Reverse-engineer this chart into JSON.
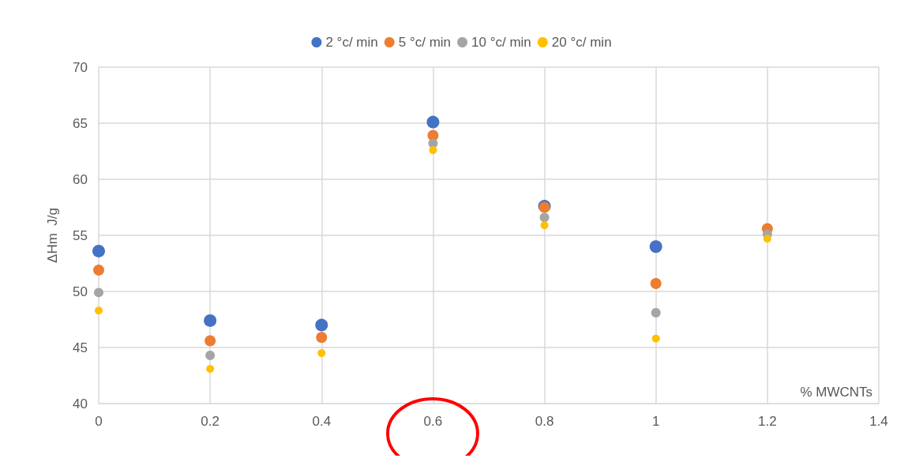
{
  "chart_data": {
    "type": "scatter",
    "ylabel": "ΔHm  J/g",
    "xlabel": "% MWCNTs",
    "x": [
      0,
      0.2,
      0.4,
      0.6,
      0.8,
      1,
      1.2
    ],
    "series": [
      {
        "name": "2 °c/ min",
        "color": "#4472c4",
        "values": [
          53.6,
          47.4,
          47.0,
          65.1,
          57.6,
          54.0,
          null
        ]
      },
      {
        "name": "5 °c/ min",
        "color": "#ed7d31",
        "values": [
          51.9,
          45.6,
          45.9,
          63.9,
          57.5,
          50.7,
          55.6
        ]
      },
      {
        "name": "10 °c/ min",
        "color": "#a5a5a5",
        "values": [
          49.9,
          44.3,
          null,
          63.2,
          56.6,
          48.1,
          55.1
        ]
      },
      {
        "name": "20 °c/ min",
        "color": "#ffc000",
        "values": [
          48.3,
          43.1,
          44.5,
          62.6,
          55.9,
          45.8,
          54.7
        ]
      }
    ],
    "xlim": [
      0,
      1.4
    ],
    "xticks": [
      0,
      0.2,
      0.4,
      0.6,
      0.8,
      1,
      1.2,
      1.4
    ],
    "ylim": [
      40,
      70
    ],
    "yticks": [
      40,
      45,
      50,
      55,
      60,
      65,
      70
    ],
    "grid": true,
    "legend": "top",
    "marker": "circle"
  }
}
